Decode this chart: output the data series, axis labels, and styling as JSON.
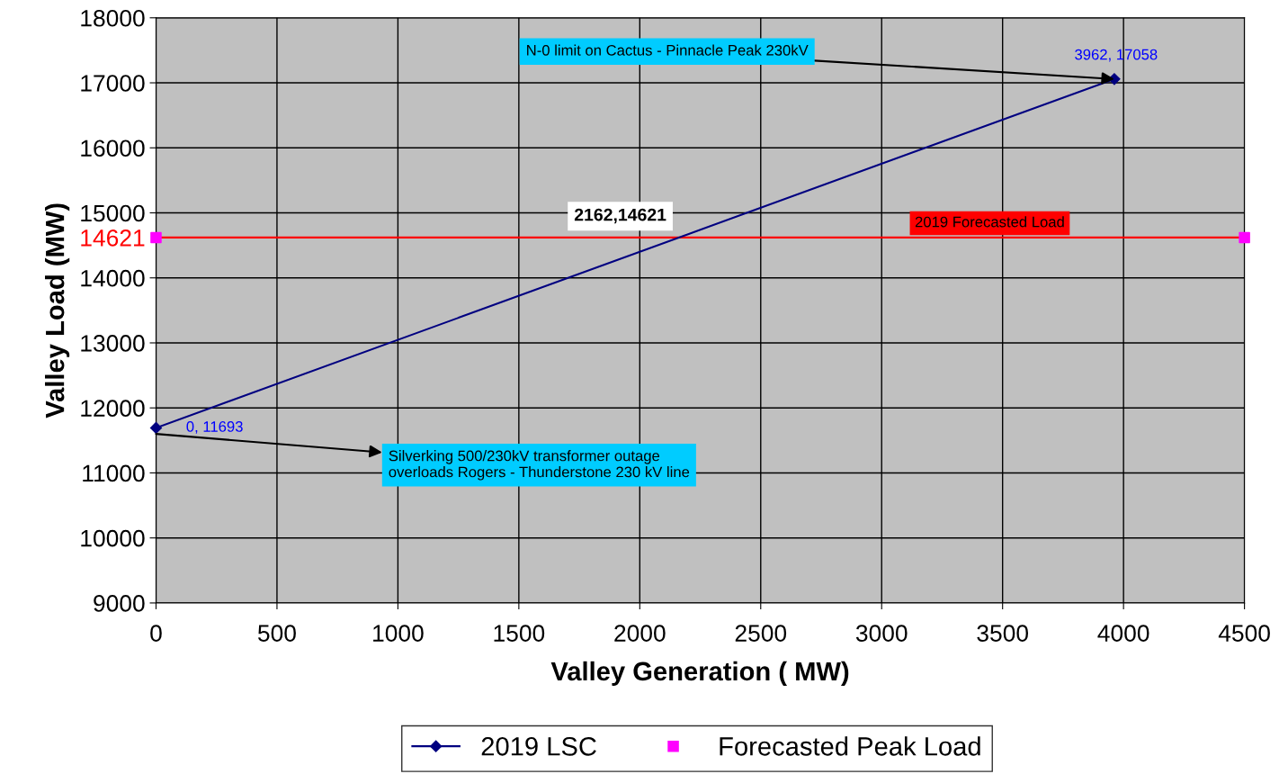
{
  "chart_data": {
    "type": "line",
    "xlabel": "Valley Generation ( MW)",
    "ylabel": "Valley Load (MW)",
    "xlim": [
      0,
      4500
    ],
    "xticks": [
      0,
      500,
      1000,
      1500,
      2000,
      2500,
      3000,
      3500,
      4000,
      4500
    ],
    "ylim": [
      9000,
      18000
    ],
    "yticks": [
      9000,
      10000,
      11000,
      12000,
      13000,
      14000,
      {
        "value": 14621,
        "label": "14621"
      },
      15000,
      16000,
      17000,
      18000
    ],
    "series": [
      {
        "name": "2019 LSC",
        "color": "#000080",
        "x": [
          0,
          3962
        ],
        "values": [
          11693,
          17058
        ],
        "marker": "diamond",
        "value_labels": [
          "0, 11693",
          "3962, 17058"
        ]
      },
      {
        "name": "Forecasted Peak Load",
        "type": "scatter",
        "color": "#ff00ff",
        "x": [
          0,
          4500
        ],
        "values": [
          14621,
          14621
        ],
        "marker": "square"
      }
    ],
    "ref_lines": [
      {
        "axis": "y",
        "value": 14621,
        "label": "2019 Forecasted Load",
        "color": "#ff0000"
      }
    ],
    "annotations": [
      {
        "text": "N-0 limit on Cactus - Pinnacle Peak 230kV",
        "x": 3962,
        "y": 17058
      },
      {
        "text": "2162,14621",
        "x": 2162,
        "y": 14621
      },
      {
        "text": "Silverking 500/230kV transformer outage\noverloads Rogers - Thunderstone 230 kV line",
        "x": 0,
        "y": 11600
      }
    ],
    "grid": true,
    "legend": "bottom"
  }
}
